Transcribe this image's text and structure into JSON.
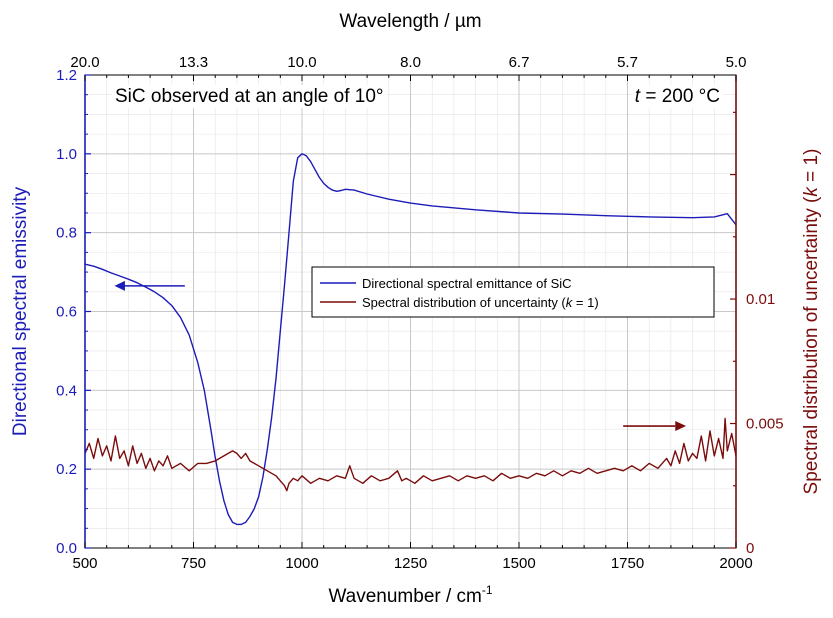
{
  "chart_data": {
    "type": "line",
    "title": "",
    "annotations": {
      "sample": "SiC observed at an angle of 10°",
      "temperature_var": "t",
      "temperature_rest": " = 200 °C"
    },
    "xlabel": "Wavenumber / cm",
    "xlabel_sup": "-1",
    "xlim": [
      500,
      2000
    ],
    "xticks": [
      "500",
      "750",
      "1000",
      "1250",
      "1500",
      "1750",
      "2000"
    ],
    "x2label": "Wavelength / µm",
    "x2ticks": [
      "20.0",
      "13.3",
      "10.0",
      "8.0",
      "6.7",
      "5.7",
      "5.0"
    ],
    "ylabel": "Directional spectral emissivity",
    "ylim": [
      0,
      1.2
    ],
    "yticks": [
      "0.0",
      "0.2",
      "0.4",
      "0.6",
      "0.8",
      "1.0",
      "1.2"
    ],
    "y2label_pre": "Spectral distribution of uncertainty (",
    "y2label_var": "k",
    "y2label_post": " = 1)",
    "y2lim": [
      0,
      0.019
    ],
    "y2ticks": [
      "0",
      "0.005",
      "0.01"
    ],
    "y2tick_values": [
      0,
      0.005,
      0.01
    ],
    "grid": true,
    "legend_position": "center-right",
    "legend": [
      {
        "pre": "Directional spectral emittance of SiC",
        "var": "",
        "post": ""
      },
      {
        "pre": "Spectral distribution of uncertainty (",
        "var": "k",
        "post": " = 1)"
      }
    ],
    "colors": {
      "emissivity": "#1c1cb8",
      "uncertainty": "#7b0c0c",
      "grid": "#c8c8c8"
    },
    "series": [
      {
        "name": "Directional spectral emittance of SiC",
        "axis": "left",
        "x": [
          500,
          520,
          540,
          560,
          580,
          600,
          620,
          640,
          660,
          680,
          700,
          720,
          740,
          760,
          775,
          790,
          800,
          810,
          820,
          830,
          840,
          850,
          860,
          870,
          880,
          890,
          900,
          910,
          920,
          930,
          940,
          950,
          960,
          970,
          980,
          990,
          1000,
          1010,
          1020,
          1030,
          1040,
          1050,
          1060,
          1070,
          1080,
          1090,
          1100,
          1120,
          1150,
          1200,
          1250,
          1300,
          1400,
          1500,
          1600,
          1700,
          1800,
          1900,
          1950,
          1980,
          2000
        ],
        "y": [
          0.72,
          0.715,
          0.707,
          0.698,
          0.69,
          0.682,
          0.673,
          0.662,
          0.65,
          0.635,
          0.615,
          0.585,
          0.54,
          0.47,
          0.4,
          0.3,
          0.23,
          0.17,
          0.12,
          0.085,
          0.065,
          0.06,
          0.06,
          0.065,
          0.08,
          0.1,
          0.13,
          0.18,
          0.25,
          0.33,
          0.43,
          0.55,
          0.67,
          0.8,
          0.93,
          0.99,
          1.0,
          0.995,
          0.98,
          0.96,
          0.94,
          0.925,
          0.915,
          0.908,
          0.905,
          0.907,
          0.91,
          0.908,
          0.898,
          0.885,
          0.875,
          0.868,
          0.858,
          0.85,
          0.847,
          0.843,
          0.84,
          0.838,
          0.84,
          0.848,
          0.82
        ]
      },
      {
        "name": "Spectral distribution of uncertainty (k = 1)",
        "axis": "right",
        "x": [
          500,
          510,
          520,
          530,
          540,
          550,
          560,
          570,
          580,
          590,
          600,
          610,
          620,
          630,
          640,
          650,
          660,
          670,
          680,
          690,
          700,
          720,
          740,
          760,
          780,
          800,
          820,
          830,
          840,
          850,
          860,
          870,
          880,
          890,
          900,
          910,
          920,
          930,
          940,
          950,
          960,
          965,
          970,
          980,
          990,
          1000,
          1020,
          1040,
          1060,
          1080,
          1100,
          1110,
          1120,
          1140,
          1160,
          1180,
          1200,
          1220,
          1230,
          1240,
          1260,
          1280,
          1300,
          1320,
          1340,
          1360,
          1380,
          1400,
          1420,
          1440,
          1460,
          1480,
          1500,
          1520,
          1540,
          1560,
          1580,
          1600,
          1620,
          1640,
          1660,
          1680,
          1700,
          1720,
          1740,
          1760,
          1780,
          1800,
          1820,
          1840,
          1850,
          1860,
          1870,
          1880,
          1890,
          1900,
          1910,
          1920,
          1930,
          1940,
          1950,
          1960,
          1970,
          1975,
          1980,
          1990,
          2000
        ],
        "y": [
          0.0038,
          0.0042,
          0.0036,
          0.0044,
          0.0037,
          0.0041,
          0.0035,
          0.0045,
          0.0036,
          0.0039,
          0.0033,
          0.0041,
          0.0034,
          0.0038,
          0.0032,
          0.0036,
          0.0031,
          0.0035,
          0.0033,
          0.0037,
          0.0032,
          0.0034,
          0.0031,
          0.0034,
          0.0034,
          0.0035,
          0.0037,
          0.0038,
          0.0039,
          0.0038,
          0.0036,
          0.0038,
          0.0035,
          0.0034,
          0.0033,
          0.0032,
          0.0031,
          0.003,
          0.0029,
          0.0027,
          0.0025,
          0.0023,
          0.0026,
          0.0028,
          0.0027,
          0.0029,
          0.0026,
          0.0028,
          0.0027,
          0.0029,
          0.0028,
          0.0033,
          0.0028,
          0.0026,
          0.0029,
          0.0027,
          0.0028,
          0.0031,
          0.0027,
          0.0028,
          0.0026,
          0.0029,
          0.0027,
          0.0028,
          0.0029,
          0.0027,
          0.0029,
          0.0028,
          0.0029,
          0.0027,
          0.003,
          0.0028,
          0.0029,
          0.0028,
          0.003,
          0.0029,
          0.0031,
          0.0029,
          0.0031,
          0.003,
          0.0032,
          0.003,
          0.0031,
          0.0032,
          0.0031,
          0.0033,
          0.0031,
          0.0034,
          0.0032,
          0.0036,
          0.0033,
          0.0039,
          0.0034,
          0.0042,
          0.0035,
          0.0038,
          0.0036,
          0.0045,
          0.0035,
          0.0047,
          0.0037,
          0.0044,
          0.0036,
          0.0052,
          0.0039,
          0.0046,
          0.0037
        ]
      }
    ]
  }
}
